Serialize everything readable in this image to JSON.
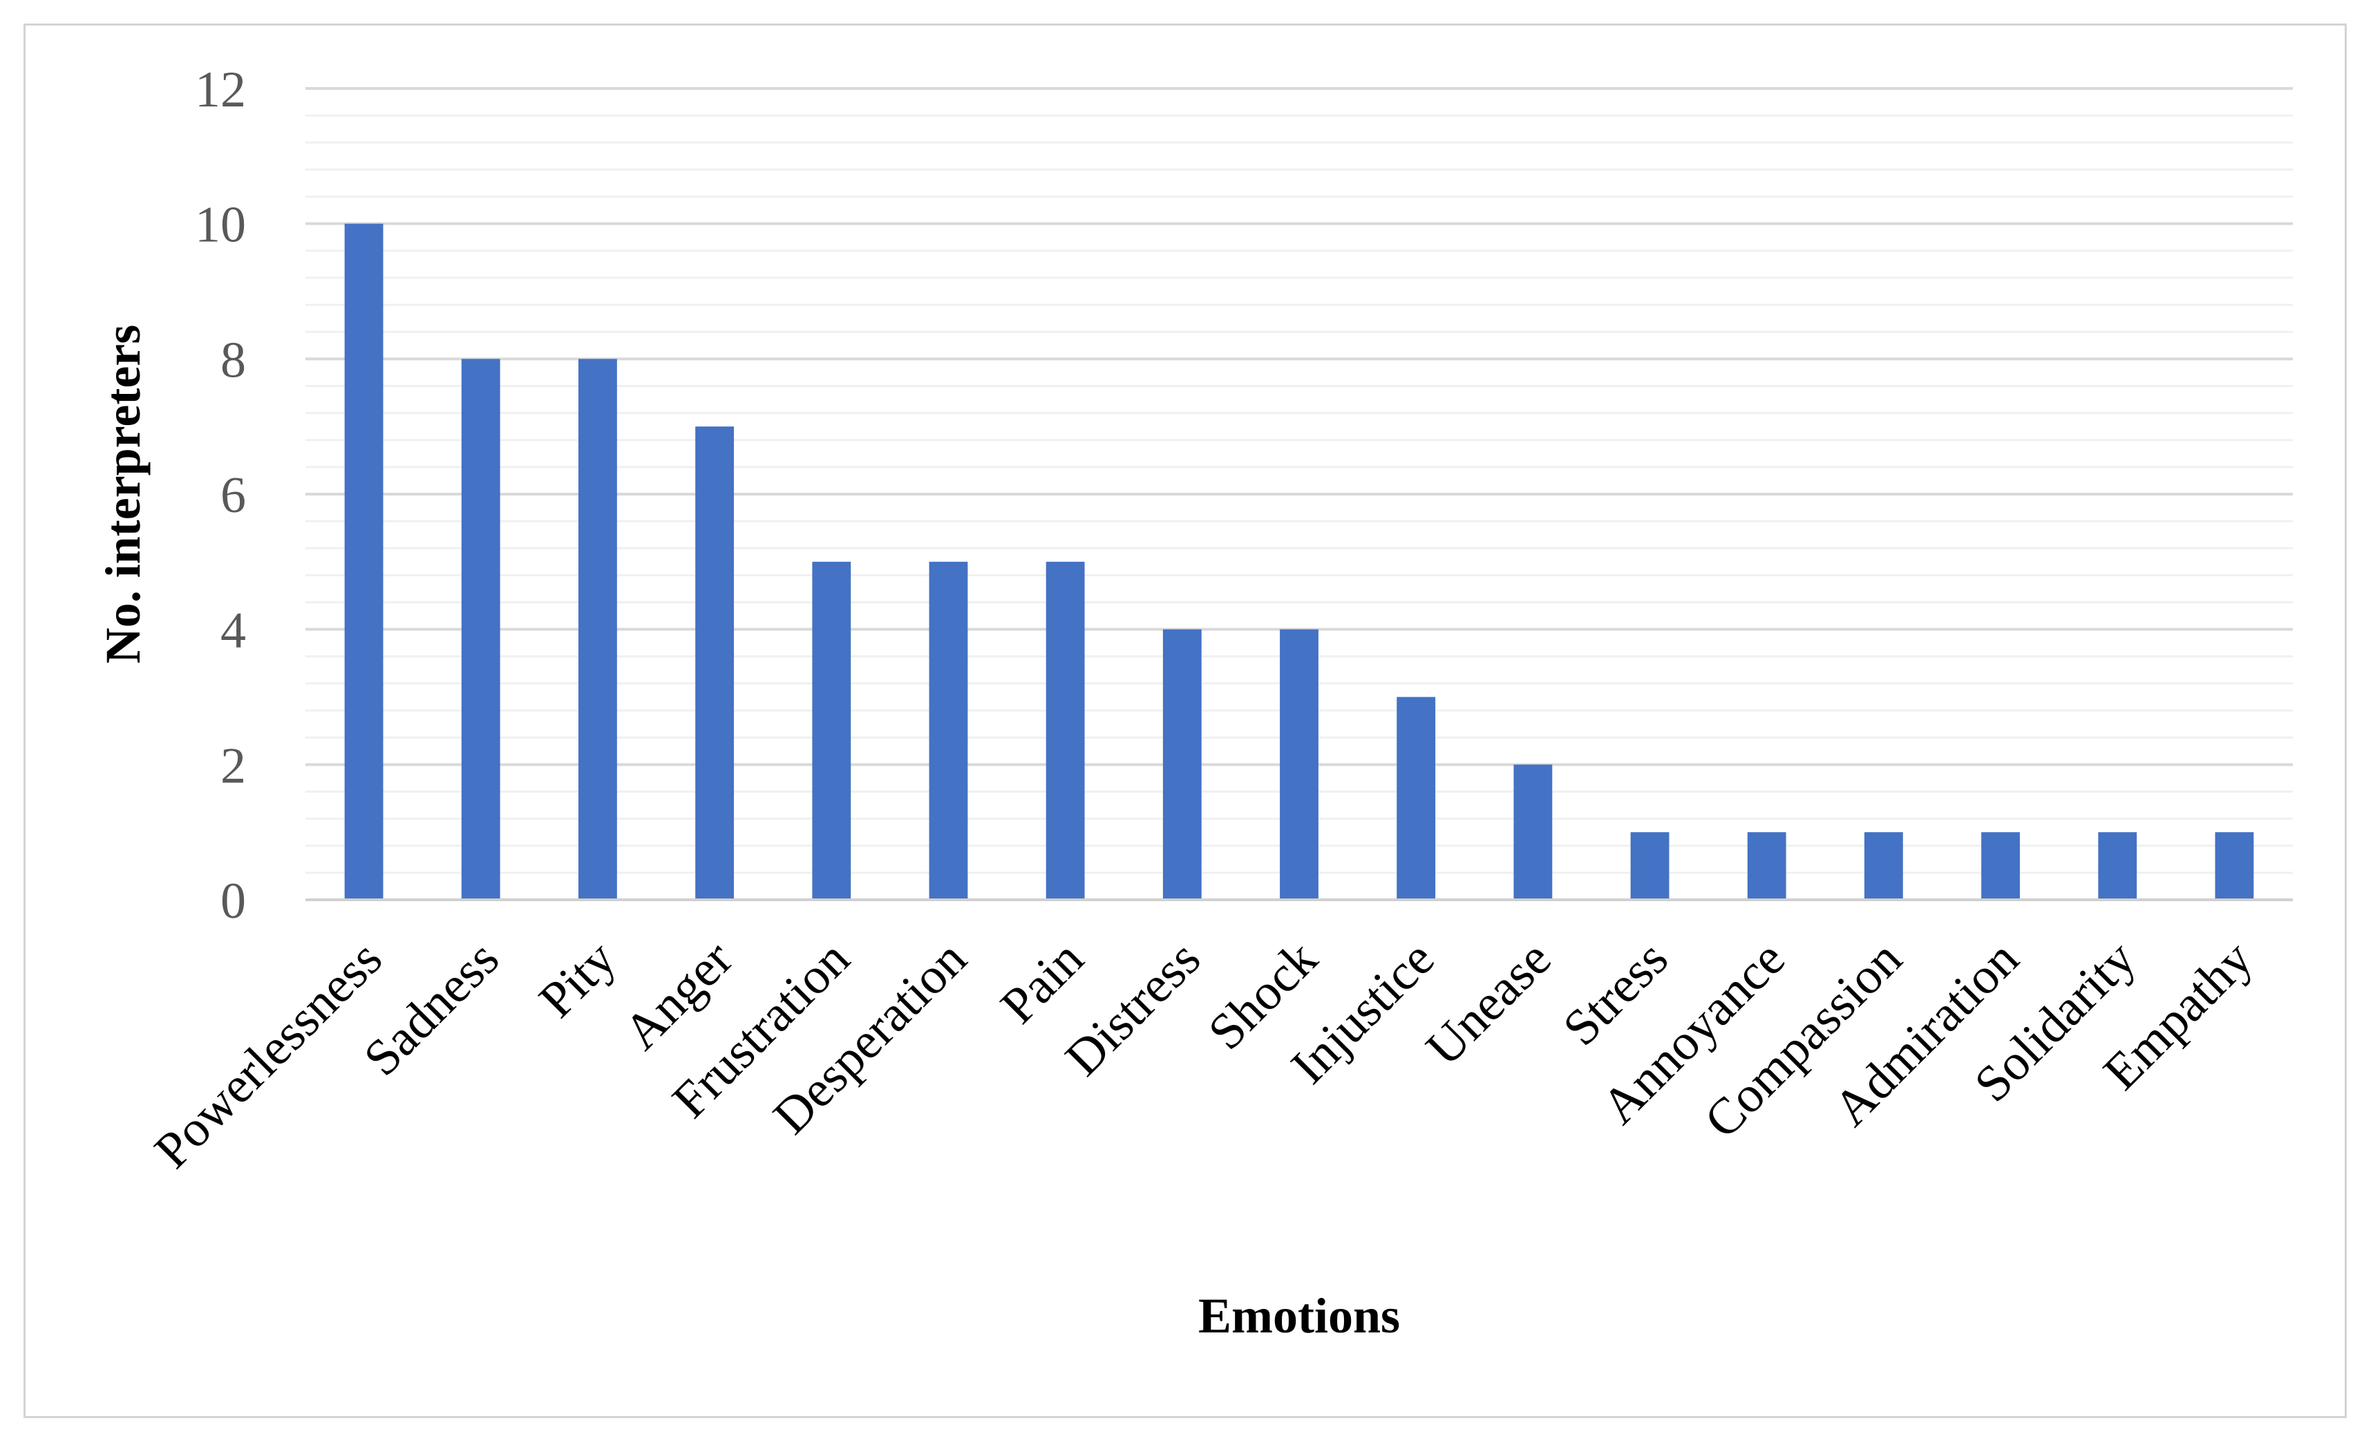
{
  "chart_data": {
    "type": "bar",
    "title": "",
    "xlabel": "Emotions",
    "ylabel": "No. interpreters",
    "ylim": [
      0,
      12
    ],
    "yticks": [
      0,
      2,
      4,
      6,
      8,
      10,
      12
    ],
    "grid": true,
    "legend": "none",
    "bar_color": "#4472C4",
    "categories": [
      "Powerlessness",
      "Sadness",
      "Pity",
      "Anger",
      "Frustration",
      "Desperation",
      "Pain",
      "Distress",
      "Shock",
      "Injustice",
      "Unease",
      "Stress",
      "Annoyance",
      "Compassion",
      "Admiration",
      "Solidarity",
      "Empathy"
    ],
    "values": [
      10,
      8,
      8,
      7,
      5,
      5,
      5,
      4,
      4,
      3,
      2,
      1,
      1,
      1,
      1,
      1,
      1
    ]
  }
}
